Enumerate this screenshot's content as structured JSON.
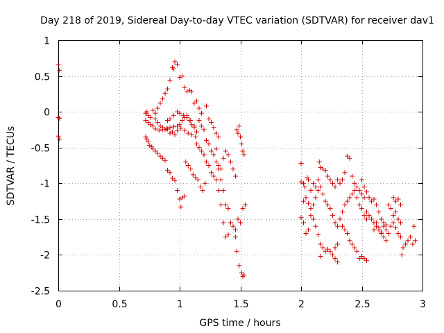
{
  "chart_data": {
    "type": "scatter",
    "title": "Day 218 of 2019, Sidereal Day-to-day VTEC variation (SDTVAR) for receiver dav1",
    "xlabel": "GPS time / hours",
    "ylabel": "SDTVAR / TECUs",
    "xlim": [
      0,
      3
    ],
    "ylim": [
      -2.5,
      1
    ],
    "xticks": [
      0,
      0.5,
      1,
      1.5,
      2,
      2.5,
      3
    ],
    "xtick_labels": [
      "0",
      "0.5",
      "1",
      "1.5",
      "2",
      "2.5",
      "3"
    ],
    "yticks": [
      1,
      0.5,
      0,
      -0.5,
      -1,
      -1.5,
      -2,
      -2.5
    ],
    "ytick_labels": [
      "1",
      "0.5",
      "0",
      "-0.5",
      "-1",
      "-1.5",
      "-2",
      "-2.5"
    ],
    "grid": true,
    "marker": "+",
    "color": "#d40000",
    "series": [
      {
        "name": "dav1",
        "points": [
          [
            0.0,
            0.66
          ],
          [
            0.01,
            0.58
          ],
          [
            0.0,
            -0.08
          ],
          [
            0.01,
            -0.09
          ],
          [
            0.0,
            -0.34
          ],
          [
            0.01,
            -0.38
          ],
          [
            0.72,
            -0.35
          ],
          [
            0.73,
            -0.38
          ],
          [
            0.74,
            -0.42
          ],
          [
            0.75,
            -0.47
          ],
          [
            0.77,
            -0.49
          ],
          [
            0.78,
            -0.52
          ],
          [
            0.8,
            -0.55
          ],
          [
            0.82,
            -0.58
          ],
          [
            0.84,
            -0.62
          ],
          [
            0.86,
            -0.65
          ],
          [
            0.88,
            -0.68
          ],
          [
            0.9,
            -0.82
          ],
          [
            0.92,
            -0.85
          ],
          [
            0.94,
            -0.93
          ],
          [
            0.96,
            -0.96
          ],
          [
            0.98,
            -1.1
          ],
          [
            1.0,
            -1.22
          ],
          [
            1.01,
            -1.33
          ],
          [
            1.02,
            -1.2
          ],
          [
            1.04,
            -1.18
          ],
          [
            0.72,
            -0.02
          ],
          [
            0.73,
            0.0
          ],
          [
            0.74,
            -0.05
          ],
          [
            0.76,
            -0.08
          ],
          [
            0.78,
            0.02
          ],
          [
            0.8,
            -0.1
          ],
          [
            0.82,
            -0.15
          ],
          [
            0.84,
            -0.2
          ],
          [
            0.86,
            -0.22
          ],
          [
            0.88,
            -0.25
          ],
          [
            0.9,
            -0.24
          ],
          [
            0.92,
            -0.3
          ],
          [
            0.94,
            -0.28
          ],
          [
            0.96,
            -0.32
          ],
          [
            0.98,
            -0.26
          ],
          [
            1.0,
            -0.18
          ],
          [
            1.02,
            -0.12
          ],
          [
            1.04,
            -0.08
          ],
          [
            1.06,
            -0.05
          ],
          [
            1.08,
            -0.12
          ],
          [
            1.1,
            -0.18
          ],
          [
            1.12,
            -0.22
          ],
          [
            1.14,
            -0.28
          ],
          [
            0.72,
            -0.12
          ],
          [
            0.74,
            -0.15
          ],
          [
            0.76,
            -0.18
          ],
          [
            0.78,
            -0.2
          ],
          [
            0.8,
            -0.24
          ],
          [
            0.83,
            -0.26
          ],
          [
            0.86,
            -0.25
          ],
          [
            0.89,
            -0.24
          ],
          [
            0.92,
            -0.22
          ],
          [
            0.95,
            -0.21
          ],
          [
            0.98,
            -0.2
          ],
          [
            1.01,
            -0.23
          ],
          [
            1.04,
            -0.26
          ],
          [
            1.07,
            -0.3
          ],
          [
            1.1,
            -0.32
          ],
          [
            1.13,
            -0.35
          ],
          [
            0.8,
            -0.02
          ],
          [
            0.82,
            0.05
          ],
          [
            0.84,
            0.12
          ],
          [
            0.86,
            0.18
          ],
          [
            0.88,
            0.26
          ],
          [
            0.9,
            0.32
          ],
          [
            0.92,
            0.44
          ],
          [
            0.94,
            0.62
          ],
          [
            0.95,
            0.6
          ],
          [
            0.96,
            0.7
          ],
          [
            0.98,
            0.66
          ],
          [
            1.0,
            0.48
          ],
          [
            1.02,
            0.5
          ],
          [
            1.04,
            0.34
          ],
          [
            1.06,
            0.28
          ],
          [
            1.08,
            0.3
          ],
          [
            1.1,
            0.28
          ],
          [
            1.12,
            0.12
          ],
          [
            1.14,
            0.15
          ],
          [
            1.16,
            0.05
          ],
          [
            1.18,
            -0.02
          ],
          [
            0.9,
            -0.12
          ],
          [
            0.92,
            -0.1
          ],
          [
            0.95,
            -0.05
          ],
          [
            0.98,
            0.0
          ],
          [
            1.0,
            -0.02
          ],
          [
            1.03,
            -0.05
          ],
          [
            1.06,
            -0.08
          ],
          [
            1.09,
            -0.12
          ],
          [
            1.12,
            -0.2
          ],
          [
            1.05,
            -0.7
          ],
          [
            1.07,
            -0.75
          ],
          [
            1.09,
            -0.8
          ],
          [
            1.11,
            -0.88
          ],
          [
            1.13,
            -0.92
          ],
          [
            1.15,
            -0.95
          ],
          [
            1.17,
            -1.05
          ],
          [
            1.19,
            -1.1
          ],
          [
            1.21,
            -1.0
          ],
          [
            1.14,
            -0.45
          ],
          [
            1.16,
            -0.5
          ],
          [
            1.18,
            -0.55
          ],
          [
            1.2,
            -0.6
          ],
          [
            1.22,
            -0.7
          ],
          [
            1.24,
            -0.75
          ],
          [
            1.26,
            -0.85
          ],
          [
            1.28,
            -0.9
          ],
          [
            1.3,
            -0.95
          ],
          [
            1.16,
            -0.12
          ],
          [
            1.18,
            -0.2
          ],
          [
            1.2,
            -0.25
          ],
          [
            1.22,
            0.08
          ],
          [
            1.24,
            -0.1
          ],
          [
            1.26,
            -0.15
          ],
          [
            1.28,
            -0.22
          ],
          [
            1.3,
            -0.3
          ],
          [
            1.32,
            -0.35
          ],
          [
            1.22,
            -0.4
          ],
          [
            1.24,
            -0.45
          ],
          [
            1.26,
            -0.55
          ],
          [
            1.28,
            -0.6
          ],
          [
            1.3,
            -0.7
          ],
          [
            1.32,
            -0.75
          ],
          [
            1.34,
            -0.8
          ],
          [
            1.36,
            -0.65
          ],
          [
            1.38,
            -0.55
          ],
          [
            1.4,
            -0.6
          ],
          [
            1.3,
            -0.52
          ],
          [
            1.32,
            -0.8
          ],
          [
            1.34,
            -0.95
          ],
          [
            1.36,
            -1.1
          ],
          [
            1.38,
            -1.3
          ],
          [
            1.4,
            -1.35
          ],
          [
            1.42,
            -1.55
          ],
          [
            1.44,
            -1.6
          ],
          [
            1.46,
            -1.75
          ],
          [
            1.47,
            -1.95
          ],
          [
            1.32,
            -1.1
          ],
          [
            1.34,
            -1.3
          ],
          [
            1.36,
            -1.55
          ],
          [
            1.38,
            -1.75
          ],
          [
            1.4,
            -1.72
          ],
          [
            1.42,
            -0.7
          ],
          [
            1.44,
            -0.8
          ],
          [
            1.46,
            -0.9
          ],
          [
            1.47,
            -0.25
          ],
          [
            1.48,
            -0.3
          ],
          [
            1.49,
            -0.2
          ],
          [
            1.5,
            -0.35
          ],
          [
            1.51,
            -0.45
          ],
          [
            1.52,
            -0.55
          ],
          [
            1.53,
            -0.6
          ],
          [
            1.48,
            -1.5
          ],
          [
            1.5,
            -1.55
          ],
          [
            1.52,
            -1.35
          ],
          [
            1.54,
            -1.3
          ],
          [
            1.46,
            -1.65
          ],
          [
            1.49,
            -2.15
          ],
          [
            1.51,
            -2.25
          ],
          [
            1.52,
            -2.3
          ],
          [
            1.53,
            -2.28
          ],
          [
            2.0,
            -0.72
          ],
          [
            2.0,
            -0.98
          ],
          [
            2.02,
            -1.0
          ],
          [
            2.03,
            -1.05
          ],
          [
            2.05,
            -0.92
          ],
          [
            2.06,
            -0.95
          ],
          [
            2.08,
            -1.1
          ],
          [
            2.1,
            -1.0
          ],
          [
            2.12,
            -1.05
          ],
          [
            2.14,
            -0.95
          ],
          [
            2.15,
            -0.7
          ],
          [
            2.16,
            -0.78
          ],
          [
            2.18,
            -0.8
          ],
          [
            2.2,
            -0.82
          ],
          [
            2.22,
            -0.9
          ],
          [
            2.24,
            -0.95
          ],
          [
            2.26,
            -1.0
          ],
          [
            2.28,
            -1.05
          ],
          [
            2.0,
            -1.48
          ],
          [
            2.02,
            -1.55
          ],
          [
            2.04,
            -1.7
          ],
          [
            2.06,
            -1.65
          ],
          [
            2.08,
            -1.45
          ],
          [
            2.1,
            -1.3
          ],
          [
            2.12,
            -1.2
          ],
          [
            2.14,
            -1.1
          ],
          [
            2.16,
            -1.05
          ],
          [
            2.18,
            -1.15
          ],
          [
            2.2,
            -1.25
          ],
          [
            2.22,
            -1.3
          ],
          [
            2.24,
            -1.35
          ],
          [
            2.26,
            -1.45
          ],
          [
            2.28,
            -1.55
          ],
          [
            2.02,
            -1.25
          ],
          [
            2.04,
            -1.2
          ],
          [
            2.06,
            -1.28
          ],
          [
            2.08,
            -1.35
          ],
          [
            2.1,
            -1.5
          ],
          [
            2.12,
            -1.6
          ],
          [
            2.14,
            -1.72
          ],
          [
            2.16,
            -1.85
          ],
          [
            2.18,
            -1.9
          ],
          [
            2.2,
            -1.95
          ],
          [
            2.22,
            -1.92
          ],
          [
            2.24,
            -1.95
          ],
          [
            2.26,
            -2.0
          ],
          [
            2.28,
            -2.05
          ],
          [
            2.3,
            -2.1
          ],
          [
            2.16,
            -2.02
          ],
          [
            2.18,
            -1.9
          ],
          [
            2.28,
            -1.9
          ],
          [
            2.3,
            -1.85
          ],
          [
            2.3,
            -0.95
          ],
          [
            2.32,
            -1.0
          ],
          [
            2.34,
            -0.95
          ],
          [
            2.36,
            -0.85
          ],
          [
            2.38,
            -0.62
          ],
          [
            2.4,
            -0.65
          ],
          [
            2.42,
            -0.9
          ],
          [
            2.44,
            -1.0
          ],
          [
            2.46,
            -1.05
          ],
          [
            2.48,
            -1.1
          ],
          [
            2.5,
            -1.15
          ],
          [
            2.52,
            -1.2
          ],
          [
            2.3,
            -1.6
          ],
          [
            2.32,
            -1.5
          ],
          [
            2.34,
            -1.4
          ],
          [
            2.36,
            -1.3
          ],
          [
            2.38,
            -1.25
          ],
          [
            2.4,
            -1.2
          ],
          [
            2.42,
            -1.15
          ],
          [
            2.44,
            -1.1
          ],
          [
            2.46,
            -1.2
          ],
          [
            2.48,
            -1.3
          ],
          [
            2.5,
            -1.35
          ],
          [
            2.52,
            -1.45
          ],
          [
            2.54,
            -1.5
          ],
          [
            2.34,
            -1.6
          ],
          [
            2.36,
            -1.65
          ],
          [
            2.38,
            -1.7
          ],
          [
            2.4,
            -1.8
          ],
          [
            2.42,
            -1.85
          ],
          [
            2.44,
            -1.9
          ],
          [
            2.46,
            -1.95
          ],
          [
            2.48,
            -2.05
          ],
          [
            2.5,
            -2.02
          ],
          [
            2.52,
            -2.05
          ],
          [
            2.54,
            -2.08
          ],
          [
            2.5,
            -0.95
          ],
          [
            2.52,
            -1.05
          ],
          [
            2.54,
            -1.12
          ],
          [
            2.56,
            -1.2
          ],
          [
            2.58,
            -1.25
          ],
          [
            2.6,
            -1.22
          ],
          [
            2.62,
            -1.3
          ],
          [
            2.64,
            -1.4
          ],
          [
            2.66,
            -1.5
          ],
          [
            2.68,
            -1.55
          ],
          [
            2.7,
            -1.58
          ],
          [
            2.54,
            -1.4
          ],
          [
            2.56,
            -1.45
          ],
          [
            2.58,
            -1.5
          ],
          [
            2.6,
            -1.55
          ],
          [
            2.62,
            -1.6
          ],
          [
            2.64,
            -1.65
          ],
          [
            2.66,
            -1.7
          ],
          [
            2.68,
            -1.75
          ],
          [
            2.7,
            -1.8
          ],
          [
            2.6,
            -1.65
          ],
          [
            2.62,
            -1.55
          ],
          [
            2.64,
            -1.62
          ],
          [
            2.66,
            -1.68
          ],
          [
            2.68,
            -1.6
          ],
          [
            2.7,
            -1.65
          ],
          [
            2.72,
            -1.7
          ],
          [
            2.74,
            -1.6
          ],
          [
            2.76,
            -1.55
          ],
          [
            2.78,
            -1.62
          ],
          [
            2.8,
            -1.7
          ],
          [
            2.72,
            -1.3
          ],
          [
            2.74,
            -1.35
          ],
          [
            2.76,
            -1.2
          ],
          [
            2.78,
            -1.25
          ],
          [
            2.8,
            -1.22
          ],
          [
            2.82,
            -1.3
          ],
          [
            2.76,
            -1.45
          ],
          [
            2.78,
            -1.4
          ],
          [
            2.8,
            -1.5
          ],
          [
            2.82,
            -1.55
          ],
          [
            2.82,
            -1.75
          ],
          [
            2.83,
            -2.0
          ],
          [
            2.84,
            -1.9
          ],
          [
            2.86,
            -1.85
          ],
          [
            2.88,
            -1.8
          ],
          [
            2.9,
            -1.75
          ],
          [
            2.92,
            -1.85
          ],
          [
            2.93,
            -1.6
          ],
          [
            2.94,
            -1.8
          ]
        ]
      }
    ]
  }
}
